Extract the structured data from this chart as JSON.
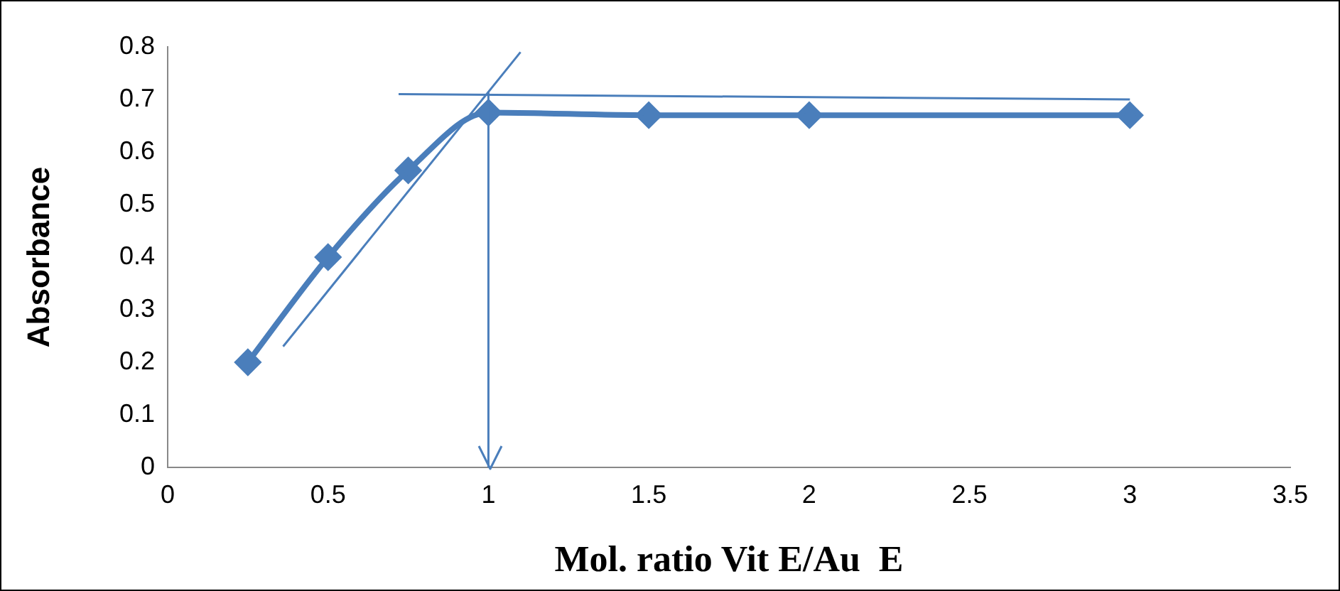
{
  "chart_data": {
    "type": "line",
    "xlabel": "Mol. ratio Vit E/Au  E",
    "ylabel": "Absorbance",
    "x": [
      0.25,
      0.5,
      0.75,
      1,
      1.5,
      2,
      3
    ],
    "series": [
      {
        "color": "#4a7ebb",
        "values": [
          0.2,
          0.4,
          0.565,
          0.675,
          0.67,
          0.67,
          0.67
        ],
        "marker": "diamond"
      },
      {
        "type": "line",
        "color": "#4a7ebb",
        "x": [
          0.36,
          1.1
        ],
        "values": [
          0.23,
          0.79
        ],
        "marker": "none"
      },
      {
        "type": "line",
        "color": "#4a7ebb",
        "x": [
          0.72,
          3.0
        ],
        "values": [
          0.71,
          0.7
        ],
        "marker": "none"
      }
    ],
    "xlim": [
      0,
      3.5
    ],
    "xticks": [
      0,
      0.5,
      1,
      1.5,
      2,
      2.5,
      3,
      3.5
    ],
    "ylim": [
      0,
      0.8
    ],
    "yticks": [
      0,
      0.1,
      0.2,
      0.3,
      0.4,
      0.5,
      0.6,
      0.7,
      0.8
    ],
    "ref_lines": [
      {
        "axis": "x",
        "value": 1,
        "color": "#4a7ebb"
      }
    ],
    "grid": false,
    "legend": false
  }
}
